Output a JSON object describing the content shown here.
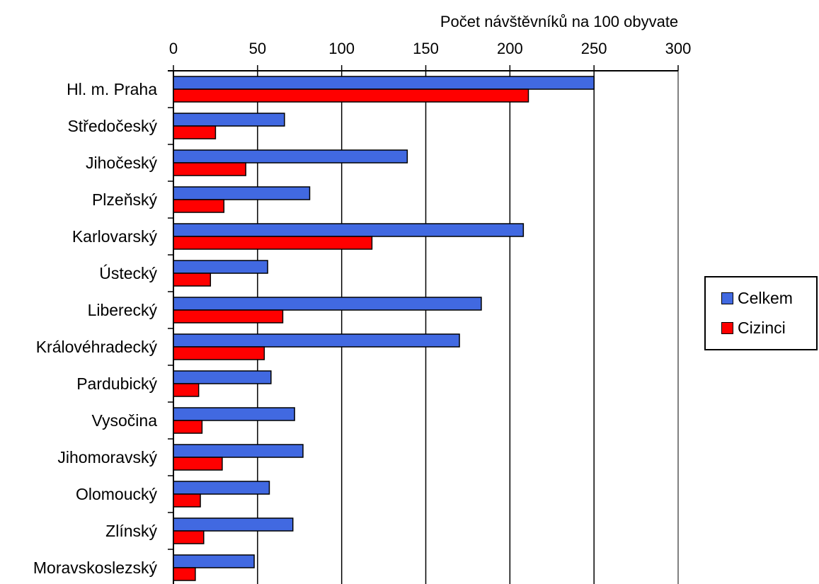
{
  "chart_data": {
    "type": "bar",
    "orientation": "horizontal",
    "title": "",
    "xlabel": "Počet návštěvníků na 100 obyvate",
    "ylabel": "",
    "xlim": [
      0,
      300
    ],
    "xticks": [
      "0",
      "50",
      "100",
      "150",
      "200",
      "250",
      "300"
    ],
    "categories": [
      "Hl. m. Praha",
      "Středočeský",
      "Jihočeský",
      "Plzeňský",
      "Karlovarský",
      "Ústecký",
      "Liberecký",
      "Královéhradecký",
      "Pardubický",
      "Vysočina",
      "Jihomoravský",
      "Olomoucký",
      "Zlínský",
      "Moravskoslezský"
    ],
    "series": [
      {
        "name": "Celkem",
        "color": "#4169e1",
        "values": [
          250,
          66,
          139,
          81,
          208,
          56,
          183,
          170,
          58,
          72,
          77,
          57,
          71,
          48
        ]
      },
      {
        "name": "Cizinci",
        "color": "#ff0000",
        "values": [
          211,
          25,
          43,
          30,
          118,
          22,
          65,
          54,
          15,
          17,
          29,
          16,
          18,
          13
        ]
      }
    ],
    "grid": true,
    "axis_position": "top",
    "legend_position": "right"
  }
}
